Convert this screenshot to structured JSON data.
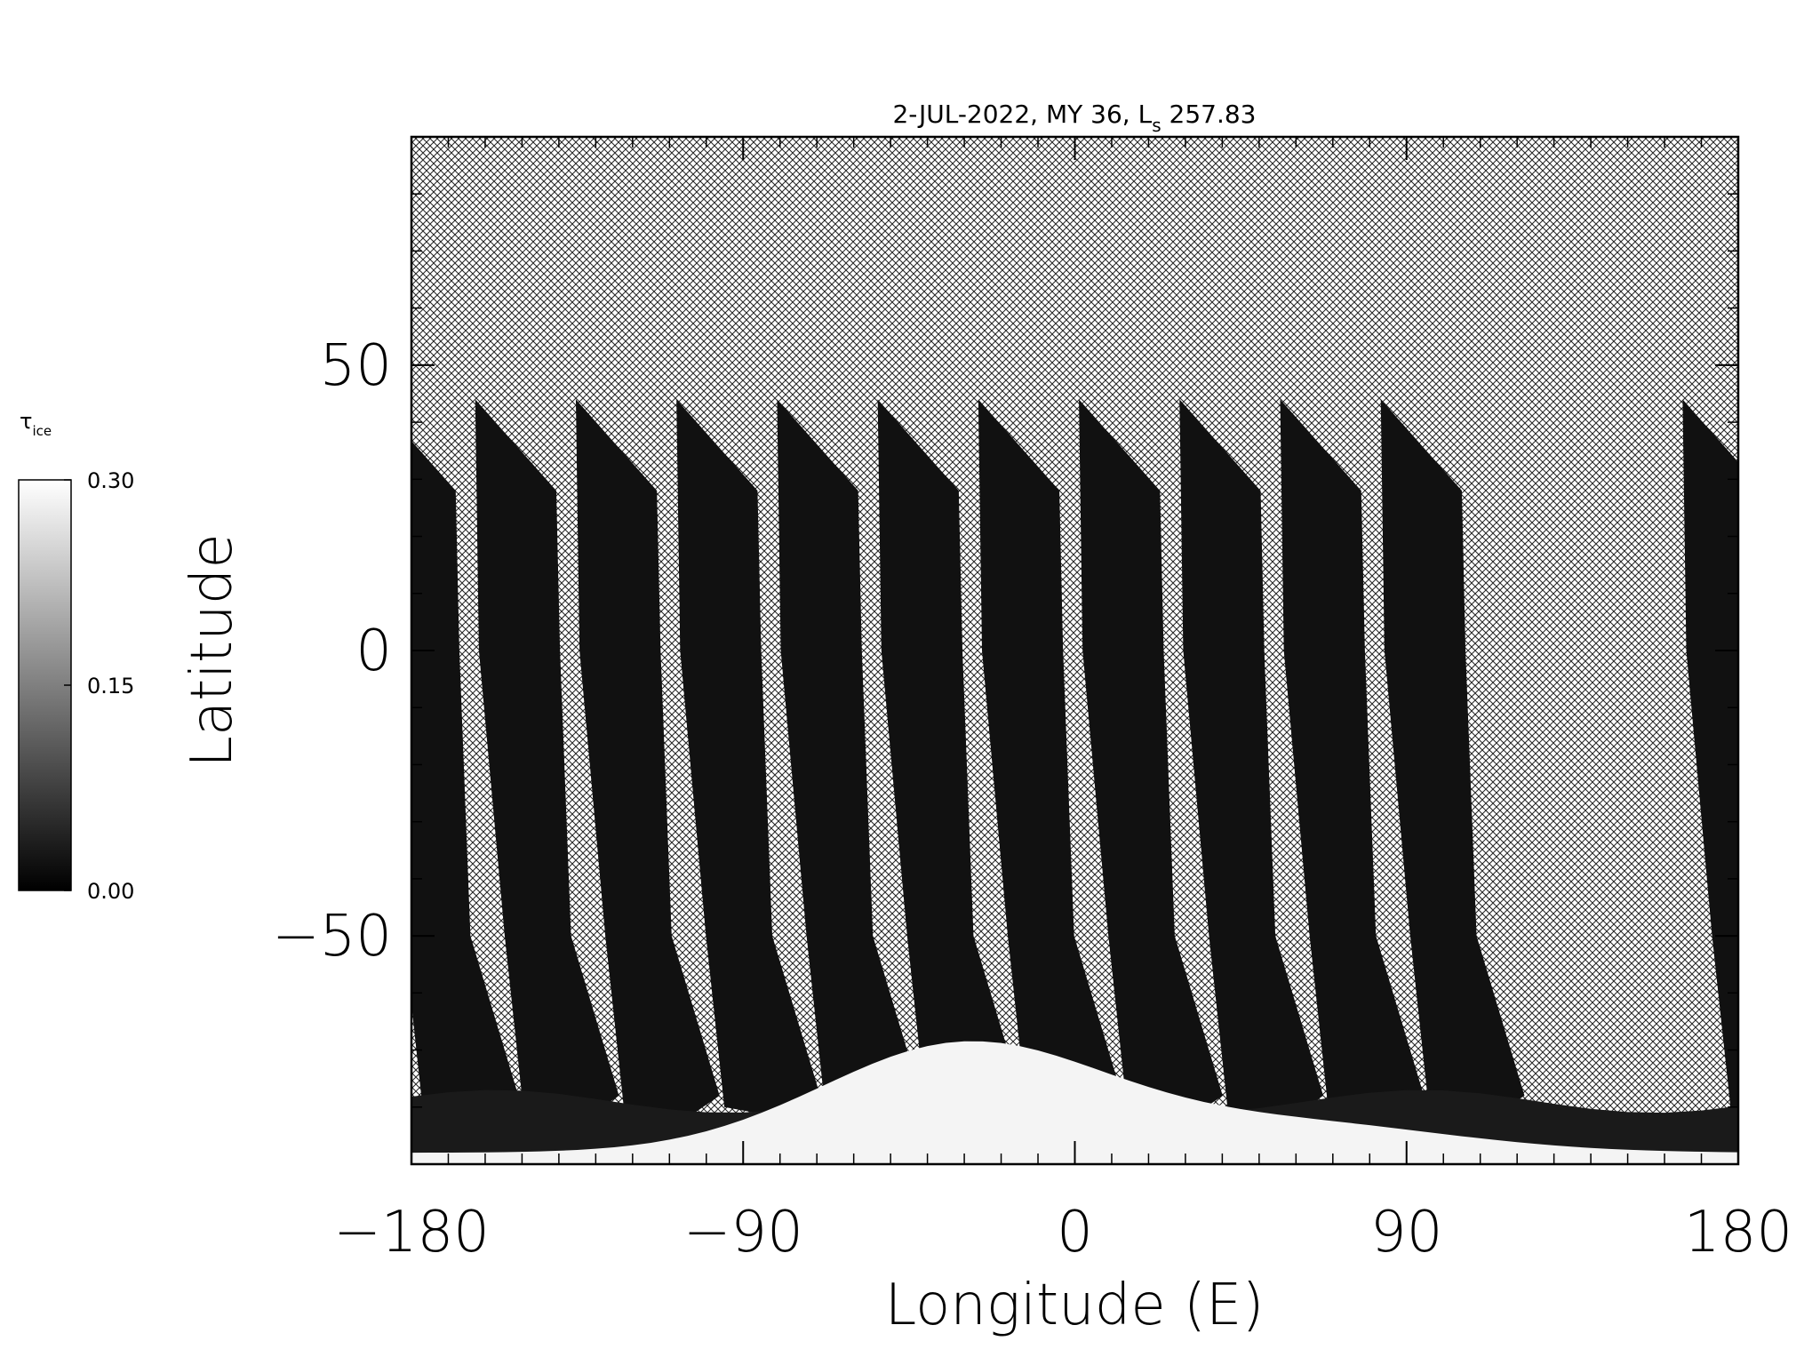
{
  "chart_data": {
    "type": "map",
    "title": "2-JUL-2022, MY 36,  L",
    "title_subscript": "s",
    "title_suffix": "257.83",
    "x_label": "Longitude (E)",
    "y_label": "Latitude",
    "xlim": [
      -180,
      180
    ],
    "ylim": [
      -90,
      90
    ],
    "xticks": [
      {
        "value": -180,
        "label": "−180"
      },
      {
        "value": -90,
        "label": "−90"
      },
      0,
      90,
      180
    ],
    "yticks": [
      {
        "value": -50,
        "label": "−50"
      },
      0,
      50
    ],
    "colorbar": {
      "label": "τ",
      "label_subscript": "ice",
      "lim": [
        0.0,
        0.3
      ],
      "ticks": [
        {
          "value": 0.0,
          "label": "0.00"
        },
        {
          "value": 0.15,
          "label": "0.15"
        },
        {
          "value": 0.3,
          "label": "0.30"
        }
      ]
    }
  }
}
